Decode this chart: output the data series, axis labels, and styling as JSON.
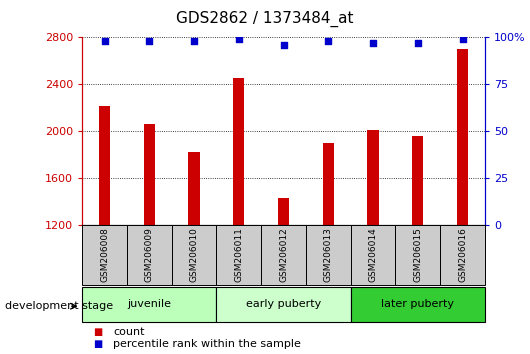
{
  "title": "GDS2862 / 1373484_at",
  "samples": [
    "GSM206008",
    "GSM206009",
    "GSM206010",
    "GSM206011",
    "GSM206012",
    "GSM206013",
    "GSM206014",
    "GSM206015",
    "GSM206016"
  ],
  "counts": [
    2210,
    2060,
    1820,
    2450,
    1430,
    1900,
    2010,
    1960,
    2700
  ],
  "percentiles": [
    98,
    98,
    98,
    99,
    96,
    98,
    97,
    97,
    99
  ],
  "ylim_left": [
    1200,
    2800
  ],
  "ylim_right": [
    0,
    100
  ],
  "yticks_left": [
    1200,
    1600,
    2000,
    2400,
    2800
  ],
  "yticks_right": [
    0,
    25,
    50,
    75,
    100
  ],
  "bar_color": "#cc0000",
  "dot_color": "#0000cc",
  "groups": [
    {
      "label": "juvenile",
      "indices": [
        0,
        1,
        2
      ],
      "color": "#bbffbb"
    },
    {
      "label": "early puberty",
      "indices": [
        3,
        4,
        5
      ],
      "color": "#ccffcc"
    },
    {
      "label": "later puberty",
      "indices": [
        6,
        7,
        8
      ],
      "color": "#33cc33"
    }
  ],
  "legend_count_label": "count",
  "legend_pct_label": "percentile rank within the sample",
  "dev_stage_label": "development stage",
  "grid_color": "#000000",
  "sample_box_color": "#cccccc",
  "left_axis_color": "#cc0000",
  "right_axis_color": "#0000cc",
  "bar_width": 0.25
}
